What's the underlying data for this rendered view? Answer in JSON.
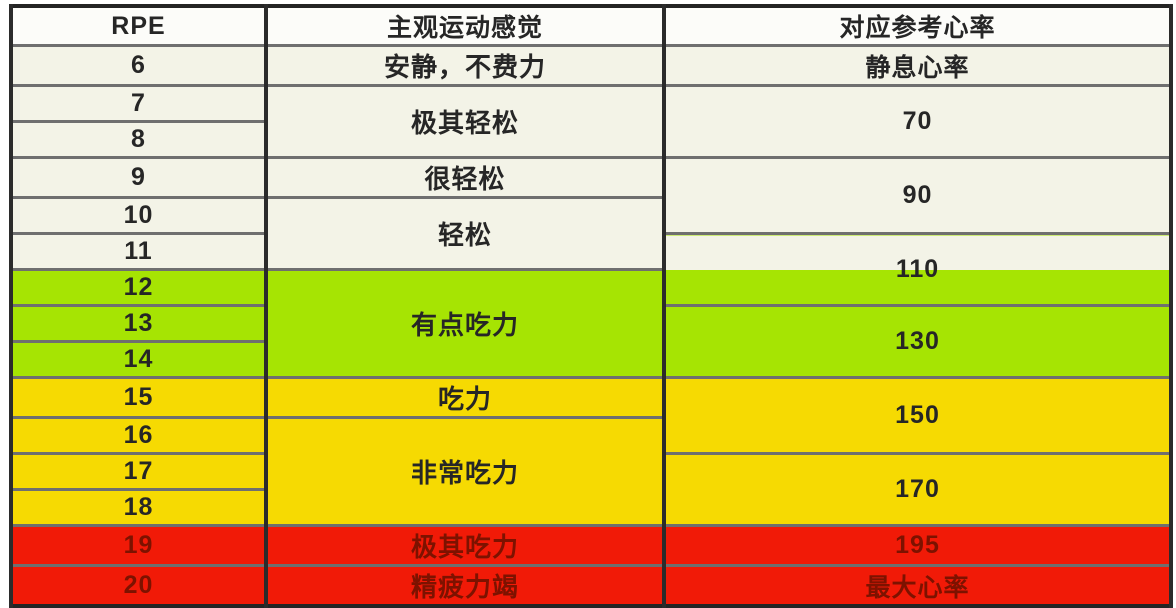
{
  "colors": {
    "header_bg": "#fcfcf9",
    "band_cream": "#f3f3e7",
    "band_green": "#a6e403",
    "band_yellow": "#f6da02",
    "band_red": "#f11a07",
    "text_dark": "#262626",
    "text_dark_red": "#7d1200",
    "grid_horizontal": "#6f6f6f",
    "grid_vertical": "#2b2b2b"
  },
  "table": {
    "columns": [
      "RPE",
      "主观运动感觉",
      "对应参考心率"
    ],
    "rpe_values": [
      "6",
      "7",
      "8",
      "9",
      "10",
      "11",
      "12",
      "13",
      "14",
      "15",
      "16",
      "17",
      "18",
      "19",
      "20"
    ],
    "feel_cells": [
      {
        "label": "安静，不费力",
        "rows": "6"
      },
      {
        "label": "极其轻松",
        "rows": "7-8"
      },
      {
        "label": "很轻松",
        "rows": "9"
      },
      {
        "label": "轻松",
        "rows": "10-11"
      },
      {
        "label": "有点吃力",
        "rows": "12-14"
      },
      {
        "label": "吃力",
        "rows": "15"
      },
      {
        "label": "非常吃力",
        "rows": "16-18"
      },
      {
        "label": "极其吃力",
        "rows": "19"
      },
      {
        "label": "精疲力竭",
        "rows": "20"
      }
    ],
    "hr_cells": [
      {
        "label": "静息心率",
        "rows": "6"
      },
      {
        "label": "70",
        "rows": "7-8"
      },
      {
        "label": "90",
        "rows": "9-10"
      },
      {
        "label": "110",
        "rows": "11-12"
      },
      {
        "label": "130",
        "rows": "13-14"
      },
      {
        "label": "150",
        "rows": "15-16"
      },
      {
        "label": "170",
        "rows": "17-18"
      },
      {
        "label": "195",
        "rows": "19"
      },
      {
        "label": "最大心率",
        "rows": "20"
      }
    ]
  },
  "chart_data": {
    "type": "table",
    "title": "",
    "columns": [
      "RPE",
      "主观运动感觉",
      "对应参考心率"
    ],
    "rows": [
      [
        "6",
        "安静，不费力",
        "静息心率"
      ],
      [
        "7",
        "极其轻松",
        "70"
      ],
      [
        "8",
        "极其轻松",
        "70"
      ],
      [
        "9",
        "很轻松",
        "90"
      ],
      [
        "10",
        "轻松",
        "90"
      ],
      [
        "11",
        "轻松",
        "110"
      ],
      [
        "12",
        "有点吃力",
        "110"
      ],
      [
        "13",
        "有点吃力",
        "130"
      ],
      [
        "14",
        "有点吃力",
        "130"
      ],
      [
        "15",
        "吃力",
        "150"
      ],
      [
        "16",
        "非常吃力",
        "150"
      ],
      [
        "17",
        "非常吃力",
        "170"
      ],
      [
        "18",
        "非常吃力",
        "170"
      ],
      [
        "19",
        "极其吃力",
        "195"
      ],
      [
        "20",
        "精疲力竭",
        "最大心率"
      ]
    ]
  }
}
